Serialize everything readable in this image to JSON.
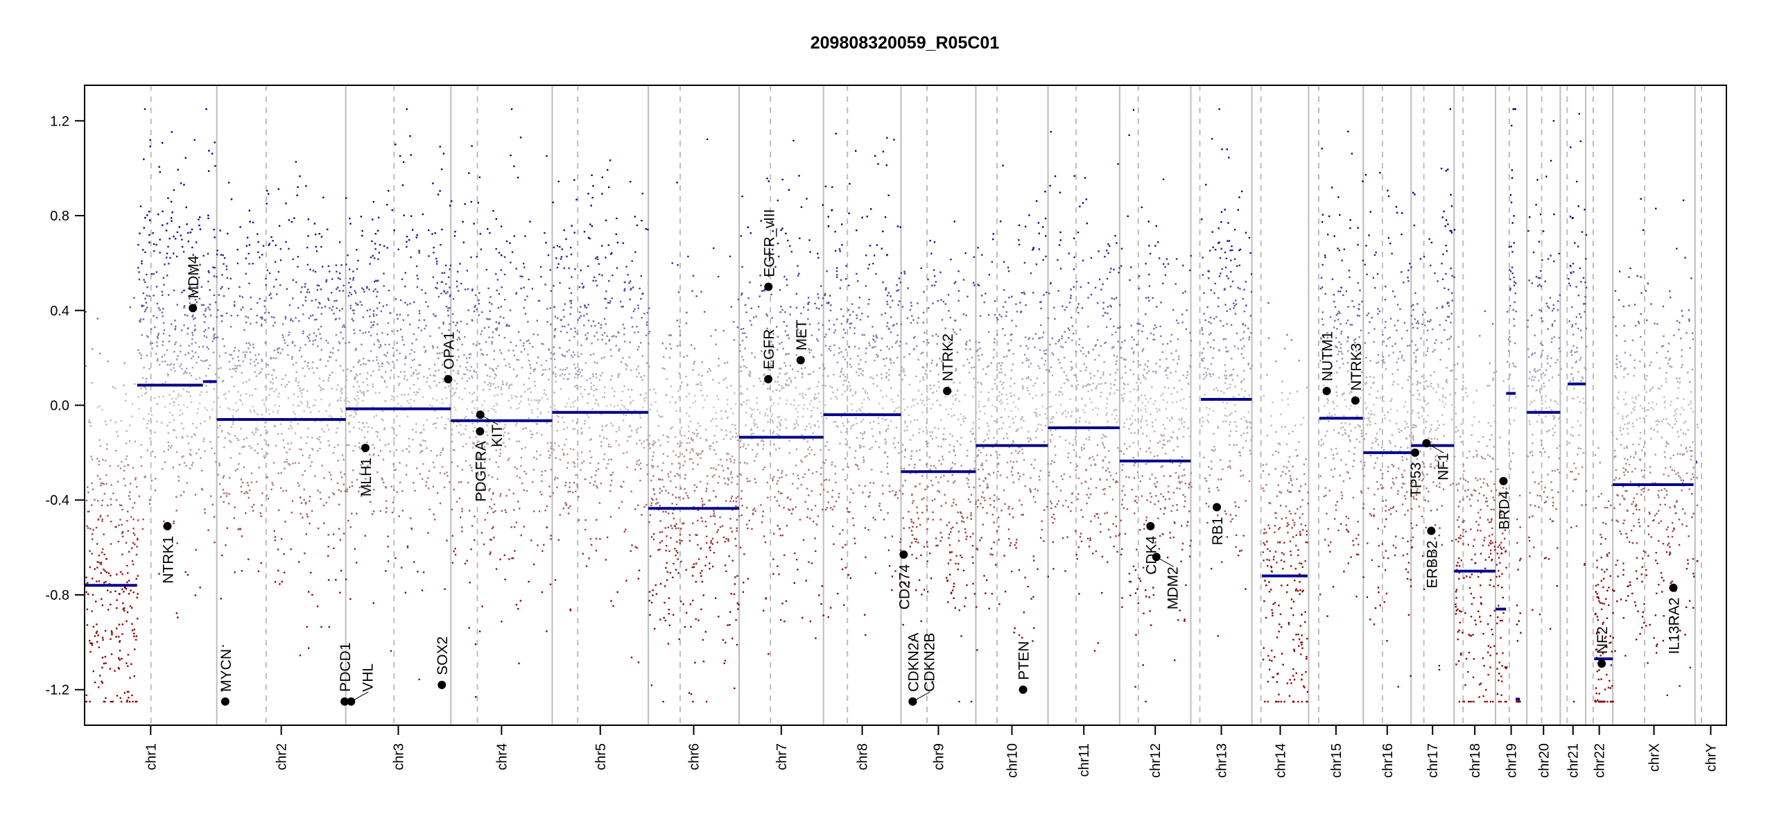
{
  "chart_data": {
    "type": "scatter",
    "title": "209808320059_R05C01",
    "xlabel": "",
    "ylabel": "",
    "ylim": [
      -1.35,
      1.35
    ],
    "yticks": [
      "1.2",
      "0.8",
      "0.4",
      "0.0",
      "-0.4",
      "-0.8",
      "-1.2"
    ],
    "ytick_values": [
      1.2,
      0.8,
      0.4,
      0.0,
      -0.4,
      -0.8,
      -1.2
    ],
    "clip_value": 1.25,
    "grid": false,
    "colors": {
      "gain": "#00008b",
      "neutral": "#c8c8c8",
      "loss": "#8b0000",
      "segment": "#00008b",
      "chrom_line": "#bdbdbd",
      "gene_point": "#000000"
    },
    "chromosomes": [
      {
        "name": "chr1",
        "length": 249,
        "centromere": 125
      },
      {
        "name": "chr2",
        "length": 243,
        "centromere": 93
      },
      {
        "name": "chr3",
        "length": 198,
        "centromere": 91
      },
      {
        "name": "chr4",
        "length": 191,
        "centromere": 50
      },
      {
        "name": "chr5",
        "length": 181,
        "centromere": 48
      },
      {
        "name": "chr6",
        "length": 171,
        "centromere": 60
      },
      {
        "name": "chr7",
        "length": 159,
        "centromere": 59
      },
      {
        "name": "chr8",
        "length": 146,
        "centromere": 45
      },
      {
        "name": "chr9",
        "length": 141,
        "centromere": 49
      },
      {
        "name": "chr10",
        "length": 136,
        "centromere": 40
      },
      {
        "name": "chr11",
        "length": 135,
        "centromere": 53
      },
      {
        "name": "chr12",
        "length": 134,
        "centromere": 35
      },
      {
        "name": "chr13",
        "length": 115,
        "centromere": 17
      },
      {
        "name": "chr14",
        "length": 107,
        "centromere": 17
      },
      {
        "name": "chr15",
        "length": 103,
        "centromere": 19
      },
      {
        "name": "chr16",
        "length": 90,
        "centromere": 36
      },
      {
        "name": "chr17",
        "length": 81,
        "centromere": 24
      },
      {
        "name": "chr18",
        "length": 78,
        "centromere": 17
      },
      {
        "name": "chr19",
        "length": 59,
        "centromere": 26
      },
      {
        "name": "chr20",
        "length": 63,
        "centromere": 28
      },
      {
        "name": "chr21",
        "length": 48,
        "centromere": 13
      },
      {
        "name": "chr22",
        "length": 51,
        "centromere": 14
      },
      {
        "name": "chrX",
        "length": 155,
        "centromere": 60
      },
      {
        "name": "chrY",
        "length": 59,
        "centromere": 12
      }
    ],
    "segments": [
      {
        "chr": "chr1",
        "start": 1,
        "end": 99,
        "value": -0.76
      },
      {
        "chr": "chr1",
        "start": 99,
        "end": 223,
        "value": 0.085
      },
      {
        "chr": "chr1",
        "start": 223,
        "end": 249,
        "value": 0.1
      },
      {
        "chr": "chr2",
        "start": 0,
        "end": 243,
        "value": -0.06
      },
      {
        "chr": "chr3",
        "start": 0,
        "end": 198,
        "value": -0.015
      },
      {
        "chr": "chr4",
        "start": 0,
        "end": 191,
        "value": -0.065
      },
      {
        "chr": "chr5",
        "start": 0,
        "end": 181,
        "value": -0.03
      },
      {
        "chr": "chr6",
        "start": 0,
        "end": 171,
        "value": -0.435
      },
      {
        "chr": "chr7",
        "start": 0,
        "end": 159,
        "value": -0.135
      },
      {
        "chr": "chr8",
        "start": 0,
        "end": 146,
        "value": -0.04
      },
      {
        "chr": "chr9",
        "start": 0,
        "end": 141,
        "value": -0.28
      },
      {
        "chr": "chr10",
        "start": 0,
        "end": 136,
        "value": -0.17
      },
      {
        "chr": "chr11",
        "start": 0,
        "end": 135,
        "value": -0.095
      },
      {
        "chr": "chr12",
        "start": 0,
        "end": 134,
        "value": -0.235
      },
      {
        "chr": "chr13",
        "start": 19,
        "end": 115,
        "value": 0.025
      },
      {
        "chr": "chr14",
        "start": 19,
        "end": 105,
        "value": -0.72
      },
      {
        "chr": "chr15",
        "start": 20,
        "end": 102,
        "value": -0.055
      },
      {
        "chr": "chr16",
        "start": 0,
        "end": 90,
        "value": -0.2
      },
      {
        "chr": "chr17",
        "start": 0,
        "end": 81,
        "value": -0.17
      },
      {
        "chr": "chr18",
        "start": 0,
        "end": 78,
        "value": -0.7
      },
      {
        "chr": "chr19",
        "start": 0,
        "end": 20,
        "value": -0.86
      },
      {
        "chr": "chr19",
        "start": 20,
        "end": 38,
        "value": 0.05
      },
      {
        "chr": "chr19",
        "start": 38,
        "end": 46,
        "value": -1.24
      },
      {
        "chr": "chr20",
        "start": 0,
        "end": 63,
        "value": -0.03
      },
      {
        "chr": "chr21",
        "start": 14,
        "end": 48,
        "value": 0.09
      },
      {
        "chr": "chr22",
        "start": 16,
        "end": 51,
        "value": -1.07
      },
      {
        "chr": "chrX",
        "start": 0,
        "end": 152,
        "value": -0.335
      },
      {
        "chr": "chrY",
        "start": 2,
        "end": 4,
        "value": -0.24
      }
    ],
    "genes": [
      {
        "name": "MDM4",
        "chr": "chr1",
        "pos": 204,
        "value": 0.41
      },
      {
        "name": "NTRK1",
        "chr": "chr1",
        "pos": 156,
        "value": -0.51
      },
      {
        "name": "MYCN",
        "chr": "chr2",
        "pos": 16,
        "value": -1.25
      },
      {
        "name": "PDCD1",
        "chr": "chr2",
        "pos": 241,
        "value": -1.25
      },
      {
        "name": "VHL",
        "chr": "chr3",
        "pos": 10,
        "value": -1.25
      },
      {
        "name": "MLH1",
        "chr": "chr3",
        "pos": 37,
        "value": -0.18
      },
      {
        "name": "SOX2",
        "chr": "chr3",
        "pos": 181,
        "value": -1.18
      },
      {
        "name": "OPA1",
        "chr": "chr3",
        "pos": 193,
        "value": 0.11
      },
      {
        "name": "PDGFRA",
        "chr": "chr4",
        "pos": 55,
        "value": -0.11
      },
      {
        "name": "KIT",
        "chr": "chr4",
        "pos": 55.5,
        "value": -0.04
      },
      {
        "name": "EGFR",
        "chr": "chr7",
        "pos": 55,
        "value": 0.11
      },
      {
        "name": "EGFR_vIII",
        "chr": "chr7",
        "pos": 55.3,
        "value": 0.5
      },
      {
        "name": "MET",
        "chr": "chr7",
        "pos": 116,
        "value": 0.19
      },
      {
        "name": "CD274",
        "chr": "chr9",
        "pos": 5,
        "value": -0.63
      },
      {
        "name": "CDKN2A",
        "chr": "chr9",
        "pos": 22,
        "value": -1.25
      },
      {
        "name": "CDKN2B",
        "chr": "chr9",
        "pos": 22.2,
        "value": -1.25
      },
      {
        "name": "NTRK2",
        "chr": "chr9",
        "pos": 87,
        "value": 0.06
      },
      {
        "name": "PTEN",
        "chr": "chr10",
        "pos": 89,
        "value": -1.2
      },
      {
        "name": "CDK4",
        "chr": "chr12",
        "pos": 58,
        "value": -0.51
      },
      {
        "name": "MDM2",
        "chr": "chr12",
        "pos": 69,
        "value": -0.64
      },
      {
        "name": "RB1",
        "chr": "chr13",
        "pos": 49,
        "value": -0.43
      },
      {
        "name": "NUTM1",
        "chr": "chr15",
        "pos": 34,
        "value": 0.06
      },
      {
        "name": "NTRK3",
        "chr": "chr15",
        "pos": 88,
        "value": 0.02
      },
      {
        "name": "TP53",
        "chr": "chr17",
        "pos": 7.5,
        "value": -0.2
      },
      {
        "name": "NF1",
        "chr": "chr17",
        "pos": 29,
        "value": -0.16
      },
      {
        "name": "ERBB2",
        "chr": "chr17",
        "pos": 38,
        "value": -0.53
      },
      {
        "name": "BRD4",
        "chr": "chr19",
        "pos": 15,
        "value": -0.32
      },
      {
        "name": "NF2",
        "chr": "chr22",
        "pos": 30,
        "value": -1.09
      },
      {
        "name": "IL13RA2",
        "chr": "chrX",
        "pos": 114,
        "value": -0.77
      }
    ]
  }
}
